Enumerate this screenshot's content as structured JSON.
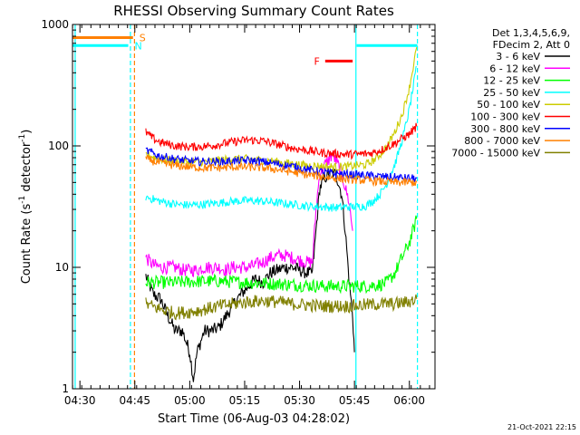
{
  "chart_data": {
    "type": "line",
    "title": "RHESSI Observing Summary Count Rates",
    "xlabel": "Start Time (06-Aug-03 04:28:02)",
    "ylabel": "Count Rate (s⁻¹ detector⁻¹)",
    "ylabel_prefix": "Count Rate (s",
    "ylabel_mid": " detector",
    "ylabel_suffix": ")",
    "ylabel_exp": "-1",
    "yscale": "log",
    "ylim": [
      1,
      1000
    ],
    "xlim_minutes": [
      -2.03,
      97
    ],
    "x_ticks": [
      {
        "label": "04:30",
        "min": 0
      },
      {
        "label": "04:45",
        "min": 15
      },
      {
        "label": "05:00",
        "min": 30
      },
      {
        "label": "05:15",
        "min": 45
      },
      {
        "label": "05:30",
        "min": 60
      },
      {
        "label": "05:45",
        "min": 75
      },
      {
        "label": "06:00",
        "min": 90
      }
    ],
    "y_ticks": [
      {
        "label": "1",
        "value": 1
      },
      {
        "label": "10",
        "value": 10
      },
      {
        "label": "100",
        "value": 100
      },
      {
        "label": "1000",
        "value": 1000
      }
    ],
    "legend_header": [
      "Det 1,3,4,5,6,9,",
      "FDecim 2, Att 0"
    ],
    "legend_placement": "right",
    "series": [
      {
        "name": "3 - 6 keV",
        "color": "#000000",
        "points": [
          [
            18,
            8.5
          ],
          [
            20,
            6
          ],
          [
            22,
            5.5
          ],
          [
            24,
            4
          ],
          [
            26,
            3
          ],
          [
            28,
            3
          ],
          [
            30,
            2
          ],
          [
            31,
            1.2
          ],
          [
            32,
            2
          ],
          [
            34,
            3
          ],
          [
            36,
            3
          ],
          [
            38,
            3.2
          ],
          [
            40,
            4
          ],
          [
            42,
            5
          ],
          [
            44,
            6
          ],
          [
            46,
            7
          ],
          [
            48,
            8
          ],
          [
            50,
            7.5
          ],
          [
            52,
            9
          ],
          [
            54,
            9.5
          ],
          [
            56,
            10
          ],
          [
            58,
            10
          ],
          [
            60,
            9.5
          ],
          [
            62,
            9
          ],
          [
            63.5,
            9
          ],
          [
            64.5,
            20
          ],
          [
            65.5,
            45
          ],
          [
            67,
            55
          ],
          [
            69,
            60
          ],
          [
            70,
            58
          ],
          [
            71.5,
            40
          ],
          [
            72.5,
            20
          ],
          [
            73.5,
            8
          ],
          [
            74.5,
            4
          ],
          [
            75,
            2
          ]
        ]
      },
      {
        "name": "6 - 12 keV",
        "color": "#ff00ff",
        "points": [
          [
            18,
            12
          ],
          [
            20,
            10.5
          ],
          [
            22,
            10
          ],
          [
            24,
            10
          ],
          [
            26,
            10
          ],
          [
            28,
            9.5
          ],
          [
            30,
            9.5
          ],
          [
            32,
            9.5
          ],
          [
            34,
            10
          ],
          [
            36,
            10
          ],
          [
            38,
            10
          ],
          [
            40,
            9.5
          ],
          [
            42,
            10
          ],
          [
            44,
            10
          ],
          [
            46,
            10
          ],
          [
            48,
            10.5
          ],
          [
            50,
            11
          ],
          [
            52,
            12
          ],
          [
            54,
            12.5
          ],
          [
            56,
            12.5
          ],
          [
            58,
            12
          ],
          [
            60,
            11.5
          ],
          [
            62,
            11
          ],
          [
            63.5,
            11
          ],
          [
            64.5,
            30
          ],
          [
            65.5,
            60
          ],
          [
            67,
            70
          ],
          [
            69,
            85
          ],
          [
            70,
            75
          ],
          [
            71.5,
            60
          ],
          [
            72.5,
            45
          ],
          [
            73.5,
            35
          ],
          [
            74.5,
            20
          ]
        ]
      },
      {
        "name": "12 - 25 keV",
        "color": "#00ff00",
        "points": [
          [
            18,
            7.5
          ],
          [
            22,
            7.5
          ],
          [
            26,
            7.5
          ],
          [
            30,
            7.6
          ],
          [
            34,
            7.7
          ],
          [
            38,
            7.7
          ],
          [
            42,
            7.6
          ],
          [
            46,
            7.5
          ],
          [
            50,
            7.4
          ],
          [
            54,
            7.3
          ],
          [
            58,
            7.2
          ],
          [
            62,
            7.1
          ],
          [
            66,
            7
          ],
          [
            70,
            7
          ],
          [
            74,
            7
          ],
          [
            78,
            7
          ],
          [
            82,
            7.2
          ],
          [
            84,
            7.5
          ],
          [
            86,
            9
          ],
          [
            88,
            12
          ],
          [
            90,
            16
          ],
          [
            92,
            25
          ]
        ]
      },
      {
        "name": "25 - 50 keV",
        "color": "#00ffff",
        "points": [
          [
            18,
            38
          ],
          [
            22,
            35
          ],
          [
            26,
            33
          ],
          [
            30,
            32.5
          ],
          [
            34,
            33
          ],
          [
            38,
            34
          ],
          [
            42,
            35
          ],
          [
            46,
            35.5
          ],
          [
            50,
            35
          ],
          [
            54,
            34
          ],
          [
            58,
            33
          ],
          [
            62,
            32
          ],
          [
            66,
            31.5
          ],
          [
            70,
            31
          ],
          [
            74,
            31.5
          ],
          [
            78,
            32
          ],
          [
            80,
            35
          ],
          [
            82,
            40
          ],
          [
            84,
            50
          ],
          [
            86,
            70
          ],
          [
            88,
            110
          ],
          [
            90,
            200
          ],
          [
            92,
            450
          ]
        ]
      },
      {
        "name": "50 - 100 keV",
        "color": "#cccc00",
        "points": [
          [
            18,
            85
          ],
          [
            22,
            78
          ],
          [
            26,
            75
          ],
          [
            30,
            74
          ],
          [
            34,
            74
          ],
          [
            38,
            76
          ],
          [
            42,
            78
          ],
          [
            46,
            78
          ],
          [
            50,
            76
          ],
          [
            54,
            74
          ],
          [
            58,
            71
          ],
          [
            62,
            69
          ],
          [
            66,
            68
          ],
          [
            70,
            67
          ],
          [
            74,
            68
          ],
          [
            78,
            70
          ],
          [
            80,
            75
          ],
          [
            82,
            85
          ],
          [
            84,
            100
          ],
          [
            86,
            130
          ],
          [
            88,
            180
          ],
          [
            90,
            300
          ],
          [
            92,
            650
          ]
        ]
      },
      {
        "name": "100 - 300 keV",
        "color": "#ff0000",
        "points": [
          [
            18,
            130
          ],
          [
            20,
            115
          ],
          [
            22,
            107
          ],
          [
            26,
            100
          ],
          [
            30,
            98
          ],
          [
            34,
            99
          ],
          [
            38,
            103
          ],
          [
            42,
            108
          ],
          [
            46,
            112
          ],
          [
            50,
            110
          ],
          [
            54,
            103
          ],
          [
            58,
            96
          ],
          [
            62,
            92
          ],
          [
            66,
            88
          ],
          [
            70,
            86
          ],
          [
            74,
            85
          ],
          [
            78,
            86
          ],
          [
            80,
            88
          ],
          [
            82,
            92
          ],
          [
            84,
            98
          ],
          [
            86,
            105
          ],
          [
            88,
            115
          ],
          [
            90,
            125
          ],
          [
            92,
            145
          ]
        ]
      },
      {
        "name": "300 - 800 keV",
        "color": "#0000ff",
        "points": [
          [
            18,
            92
          ],
          [
            22,
            82
          ],
          [
            26,
            78
          ],
          [
            30,
            75
          ],
          [
            34,
            74
          ],
          [
            38,
            74
          ],
          [
            42,
            75
          ],
          [
            46,
            76
          ],
          [
            50,
            74
          ],
          [
            54,
            71
          ],
          [
            58,
            68
          ],
          [
            62,
            64
          ],
          [
            66,
            61
          ],
          [
            70,
            59
          ],
          [
            74,
            58
          ],
          [
            78,
            57
          ],
          [
            82,
            56
          ],
          [
            86,
            55
          ],
          [
            90,
            54
          ],
          [
            92,
            54
          ]
        ]
      },
      {
        "name": "800 - 7000 keV",
        "color": "#ff8000",
        "points": [
          [
            18,
            78
          ],
          [
            22,
            72
          ],
          [
            26,
            69
          ],
          [
            30,
            67
          ],
          [
            34,
            66
          ],
          [
            38,
            66
          ],
          [
            42,
            67
          ],
          [
            46,
            67
          ],
          [
            50,
            66
          ],
          [
            54,
            64
          ],
          [
            58,
            61
          ],
          [
            62,
            58
          ],
          [
            66,
            56
          ],
          [
            70,
            54
          ],
          [
            74,
            53
          ],
          [
            78,
            52
          ],
          [
            82,
            51
          ],
          [
            86,
            50
          ],
          [
            90,
            50
          ],
          [
            92,
            50
          ]
        ]
      },
      {
        "name": "7000 - 15000 keV",
        "color": "#808000",
        "points": [
          [
            18,
            5
          ],
          [
            22,
            4.5
          ],
          [
            26,
            4.2
          ],
          [
            30,
            4.3
          ],
          [
            34,
            4.5
          ],
          [
            38,
            4.8
          ],
          [
            42,
            5
          ],
          [
            46,
            5.2
          ],
          [
            50,
            5.3
          ],
          [
            54,
            5.2
          ],
          [
            58,
            5
          ],
          [
            62,
            4.9
          ],
          [
            66,
            4.8
          ],
          [
            70,
            4.8
          ],
          [
            74,
            4.8
          ],
          [
            78,
            4.9
          ],
          [
            82,
            5
          ],
          [
            86,
            5
          ],
          [
            90,
            5.2
          ],
          [
            92,
            5.5
          ]
        ]
      }
    ],
    "flags": [
      {
        "label": "S",
        "color": "#ff8000",
        "x0": -2,
        "x1": 14.5,
        "value": 780
      },
      {
        "label": "N",
        "color": "#00ffff",
        "x0": -2,
        "x1": 13.2,
        "value": 670
      },
      {
        "label": "F",
        "color": "#ff0000",
        "x0": 67,
        "x1": 74.5,
        "value": 500
      },
      {
        "label": "",
        "color": "#00ffff",
        "x0": 75.6,
        "x1": 92.2,
        "value": 670
      }
    ],
    "vlines": [
      {
        "min": -1.3,
        "color": "#00ffff",
        "style": "solid"
      },
      {
        "min": 13.8,
        "color": "#00ffff",
        "style": "dashed"
      },
      {
        "min": 14.9,
        "color": "#ff8000",
        "style": "dashed"
      },
      {
        "min": 75.4,
        "color": "#00ffff",
        "style": "solid"
      },
      {
        "min": 92.2,
        "color": "#00ffff",
        "style": "dashed"
      }
    ]
  },
  "footer_timestamp": "21-Oct-2021 22:15"
}
